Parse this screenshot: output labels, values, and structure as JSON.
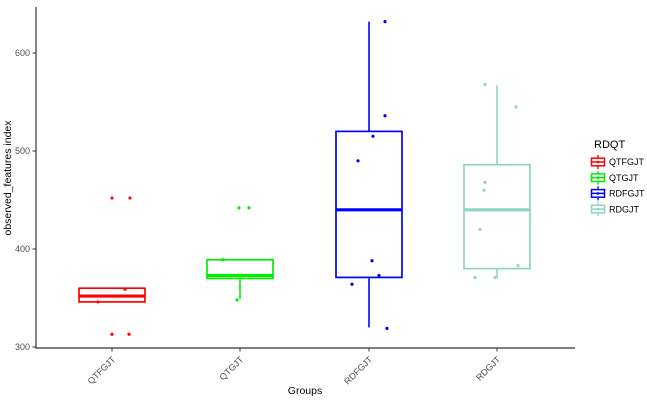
{
  "chart_data": {
    "type": "boxplot",
    "title": "",
    "xlabel": "Groups",
    "ylabel": "observed_features index",
    "yticks": [
      300,
      400,
      500,
      600
    ],
    "ylim": [
      295,
      648
    ],
    "grid": false,
    "legend": {
      "title": "RDQT",
      "position": "right",
      "entries": [
        {
          "label": "QTFGJT",
          "color": "#ff0000"
        },
        {
          "label": "QTGJT",
          "color": "#00ee00"
        },
        {
          "label": "RDFGJT",
          "color": "#0000ff"
        },
        {
          "label": "RDGJT",
          "color": "#8ad5c5"
        }
      ]
    },
    "categories": [
      "QTFGJT",
      "QTGJT",
      "RDFGJT",
      "RDGJT"
    ],
    "groups": [
      {
        "name": "QTFGJT",
        "color": "#ff0000",
        "q1": 346,
        "median": 352,
        "q3": 360,
        "whisker_low": 346,
        "whisker_high": 360,
        "points": [
          {
            "dx": 0,
            "value": 452
          },
          {
            "dx": 18,
            "value": 452
          },
          {
            "dx": 13,
            "value": 359
          },
          {
            "dx": -2,
            "value": 352
          },
          {
            "dx": -14,
            "value": 346
          },
          {
            "dx": 0,
            "value": 313
          },
          {
            "dx": 17,
            "value": 313
          }
        ]
      },
      {
        "name": "QTGJT",
        "color": "#00ee00",
        "q1": 370,
        "median": 373,
        "q3": 389,
        "whisker_low": 349,
        "whisker_high": 389,
        "points": [
          {
            "dx": -1,
            "value": 442
          },
          {
            "dx": 9,
            "value": 442
          },
          {
            "dx": -17,
            "value": 389
          },
          {
            "dx": -20,
            "value": 373
          },
          {
            "dx": -3,
            "value": 348
          }
        ]
      },
      {
        "name": "RDFGJT",
        "color": "#0000ff",
        "q1": 371,
        "median": 440,
        "q3": 520,
        "whisker_low": 320,
        "whisker_high": 632,
        "points": [
          {
            "dx": 16,
            "value": 632
          },
          {
            "dx": 16,
            "value": 536
          },
          {
            "dx": 4,
            "value": 515
          },
          {
            "dx": -11,
            "value": 490
          },
          {
            "dx": 3,
            "value": 388
          },
          {
            "dx": 10,
            "value": 373
          },
          {
            "dx": -17,
            "value": 364
          },
          {
            "dx": 18,
            "value": 319
          }
        ]
      },
      {
        "name": "RDGJT",
        "color": "#8ad5c5",
        "q1": 380,
        "median": 440,
        "q3": 486,
        "whisker_low": 370,
        "whisker_high": 567,
        "points": [
          {
            "dx": -12,
            "value": 568
          },
          {
            "dx": 19,
            "value": 545
          },
          {
            "dx": -12,
            "value": 468
          },
          {
            "dx": -13,
            "value": 460
          },
          {
            "dx": -17,
            "value": 420
          },
          {
            "dx": 21,
            "value": 383
          },
          {
            "dx": -22,
            "value": 371
          },
          {
            "dx": -2,
            "value": 371
          }
        ]
      }
    ]
  }
}
